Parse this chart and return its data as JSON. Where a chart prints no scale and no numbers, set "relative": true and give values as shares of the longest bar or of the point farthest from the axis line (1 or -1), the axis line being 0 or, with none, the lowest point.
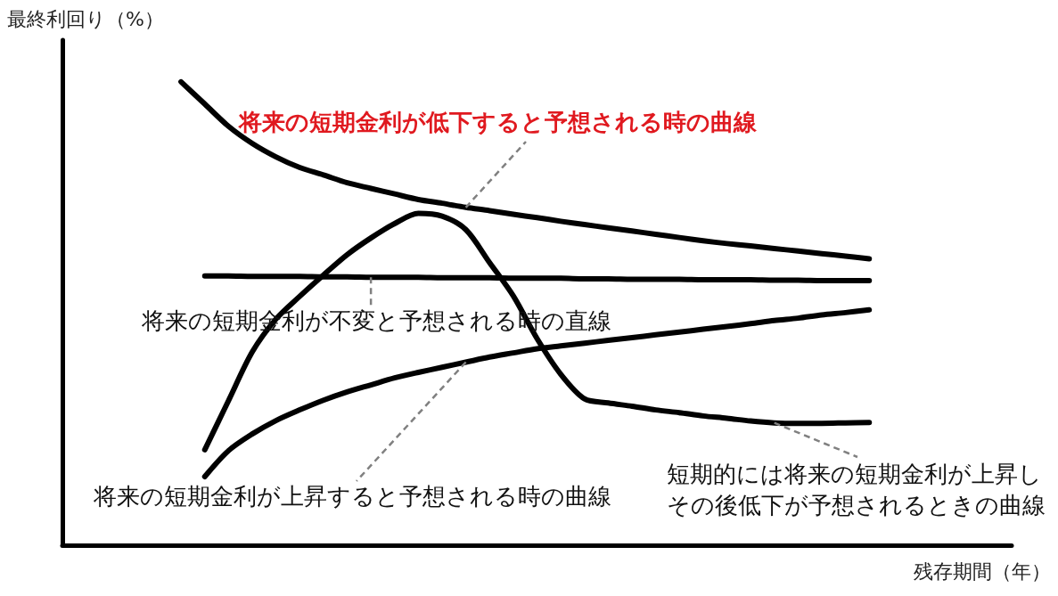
{
  "chart_data": {
    "type": "line",
    "relative": true,
    "xlabel": "残存期間（年）",
    "ylabel": "最終利回り（%）",
    "categories": [
      null,
      null,
      null,
      null,
      null,
      null,
      null,
      null,
      null,
      null,
      null,
      null,
      null,
      null,
      null,
      null,
      null,
      null,
      null,
      null,
      null,
      null,
      null,
      null,
      null,
      null,
      null,
      null,
      null,
      null,
      null,
      null,
      null,
      null,
      null,
      null,
      null,
      null,
      null,
      null,
      null
    ],
    "series": [
      {
        "name": "将来の短期金利が低下すると予想される時の曲線",
        "color": "#000000",
        "values": [
          null,
          null,
          null,
          null,
          null,
          1.0,
          0.952,
          0.904,
          0.867,
          0.838,
          0.815,
          0.799,
          0.782,
          0.77,
          0.758,
          0.746,
          0.738,
          0.729,
          0.722,
          0.714,
          0.707,
          0.699,
          0.692,
          0.685,
          0.678,
          0.671,
          0.664,
          0.657,
          0.651,
          0.646,
          0.64,
          0.635,
          0.629,
          0.624,
          0.618,
          null,
          null,
          null,
          null,
          null,
          null
        ]
      },
      {
        "name": "将来の短期金利が不変と予想される時の直線",
        "color": "#000000",
        "values": [
          null,
          null,
          null,
          null,
          null,
          null,
          0.581,
          0.581,
          0.58,
          0.58,
          0.58,
          0.579,
          0.579,
          0.578,
          0.578,
          0.578,
          0.577,
          0.577,
          0.577,
          0.576,
          0.576,
          0.576,
          0.575,
          0.575,
          0.574,
          0.574,
          0.574,
          0.573,
          0.573,
          0.573,
          0.572,
          0.572,
          0.571,
          0.571,
          0.571,
          null,
          null,
          null,
          null,
          null,
          null
        ]
      },
      {
        "name": "将来の短期金利が上昇すると予想される時の曲線",
        "color": "#000000",
        "values": [
          null,
          null,
          null,
          null,
          null,
          null,
          0.148,
          0.204,
          0.24,
          0.269,
          0.292,
          0.313,
          0.331,
          0.346,
          0.361,
          0.373,
          0.384,
          0.395,
          0.406,
          0.415,
          0.424,
          0.43,
          0.436,
          0.442,
          0.448,
          0.454,
          0.46,
          0.466,
          0.472,
          0.478,
          0.485,
          0.49,
          0.497,
          0.502,
          0.508,
          null,
          null,
          null,
          null,
          null,
          null
        ]
      },
      {
        "name": "短期的には将来の短期金利が上昇しその後低下が予想されるときの曲線",
        "color": "#000000",
        "values": [
          null,
          null,
          null,
          null,
          null,
          null,
          0.206,
          0.312,
          0.417,
          0.488,
          0.537,
          0.583,
          0.627,
          0.663,
          0.694,
          0.716,
          0.71,
          0.681,
          0.61,
          0.538,
          0.446,
          0.369,
          0.316,
          0.307,
          0.3,
          0.292,
          0.286,
          0.279,
          0.274,
          0.268,
          0.264,
          0.263,
          0.263,
          0.264,
          0.265,
          null,
          null,
          null,
          null,
          null,
          null
        ]
      }
    ]
  }
}
